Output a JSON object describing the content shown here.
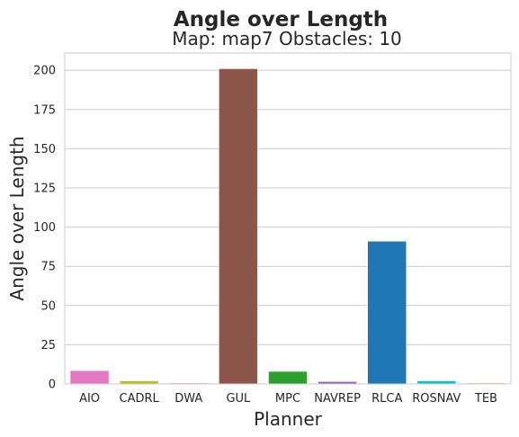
{
  "chart_data": {
    "type": "bar",
    "title": "Angle over Length",
    "subtitle": "Map: map7 Obstacles: 10",
    "xlabel": "Planner",
    "ylabel": "Angle over Length",
    "categories": [
      "AIO",
      "CADRL",
      "DWA",
      "GUL",
      "MPC",
      "NAVREP",
      "RLCA",
      "ROSNAV",
      "TEB"
    ],
    "values": [
      8.5,
      2.0,
      0.6,
      201.0,
      8.0,
      1.5,
      91.0,
      2.0,
      0.6
    ],
    "colors": [
      "#e377c2",
      "#bcbd22",
      "#e377c2",
      "#8c564b",
      "#2ca02c",
      "#9467bd",
      "#1f77b4",
      "#17becf",
      "#ff9f4a"
    ],
    "yticks": [
      0,
      25,
      50,
      75,
      100,
      125,
      150,
      175,
      200
    ],
    "ylim": [
      0,
      211
    ],
    "grid": true
  }
}
